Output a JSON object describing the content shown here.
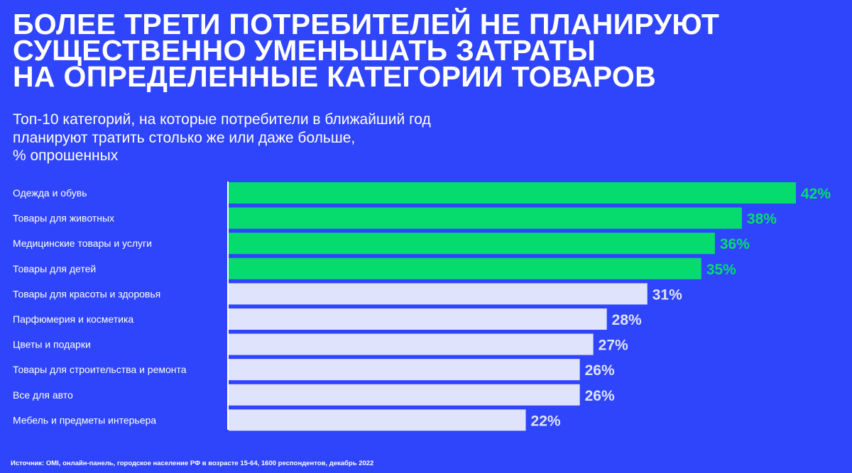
{
  "title_lines": [
    "БОЛЕЕ ТРЕТИ ПОТРЕБИТЕЛЕЙ НЕ ПЛАНИРУЮТ",
    "СУЩЕСТВЕННО УМЕНЬШАТЬ ЗАТРАТЫ",
    "НА ОПРЕДЕЛЕННЫЕ КАТЕГОРИИ ТОВАРОВ"
  ],
  "subtitle_lines": [
    "Топ-10 категорий, на которые потребители в ближайший год",
    "планируют тратить столько же или даже больше,",
    "% опрошенных"
  ],
  "footer": "Источник: OMI, онлайн-панель, городское население РФ в возрасте 15-64, 1600 респондентов, декабрь 2022",
  "colors": {
    "background": "#2f45fb",
    "highlight": "#06dc6e",
    "normal": "#dfe3fb"
  },
  "chart_data": {
    "type": "bar",
    "orientation": "horizontal",
    "title": "Топ-10 категорий, на которые потребители в ближайший год планируют тратить столько же или даже больше, % опрошенных",
    "categories": [
      "Одежда и обувь",
      "Товары для животных",
      "Медицинские товары и услуги",
      "Товары для детей",
      "Товары для красоты и здоровья",
      "Парфюмерия и косметика",
      "Цветы и подарки",
      "Товары для строительства и ремонта",
      "Все для авто",
      "Мебель и предметы интерьера"
    ],
    "values": [
      42,
      38,
      36,
      35,
      31,
      28,
      27,
      26,
      26,
      22
    ],
    "highlighted": [
      true,
      true,
      true,
      true,
      false,
      false,
      false,
      false,
      false,
      false
    ],
    "unit": "%",
    "xlim": [
      0,
      42
    ],
    "grid": false
  }
}
